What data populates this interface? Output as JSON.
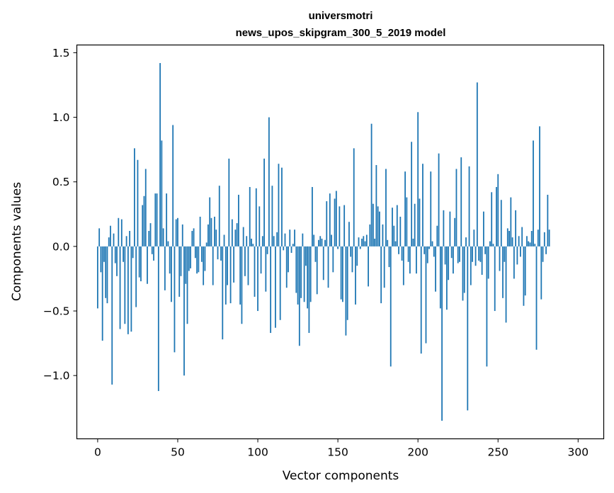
{
  "chart_data": {
    "type": "bar",
    "title_lines": [
      "universmotri",
      "news_upos_skipgram_300_5_2019 model"
    ],
    "xlabel": "Vector components",
    "ylabel": "Components values",
    "xlim": [
      -13,
      316
    ],
    "ylim": [
      -1.49,
      1.56
    ],
    "xticks": [
      0,
      50,
      100,
      150,
      200,
      250,
      300
    ],
    "xtick_labels": [
      "0",
      "50",
      "100",
      "150",
      "200",
      "250",
      "300"
    ],
    "yticks": [
      -1.0,
      -0.5,
      0.0,
      0.5,
      1.0,
      1.5
    ],
    "ytick_labels": [
      "−1.0",
      "−0.5",
      "0.0",
      "0.5",
      "1.0",
      "1.5"
    ],
    "color": "#1f77b4",
    "values": [
      -0.48,
      0.14,
      -0.2,
      -0.73,
      -0.12,
      -0.4,
      -0.44,
      0.07,
      0.16,
      -1.07,
      0.1,
      -0.13,
      -0.23,
      0.22,
      -0.64,
      0.21,
      -0.12,
      -0.6,
      0.08,
      -0.68,
      0.12,
      -0.66,
      -0.09,
      0.76,
      -0.47,
      0.67,
      -0.24,
      -0.27,
      0.32,
      0.39,
      0.6,
      -0.29,
      0.12,
      0.18,
      -0.06,
      -0.11,
      0.41,
      0.41,
      -1.12,
      1.42,
      0.82,
      0.14,
      -0.34,
      0.41,
      0.04,
      -0.21,
      -0.43,
      0.94,
      -0.82,
      0.21,
      0.22,
      -0.39,
      -0.23,
      0.17,
      -1.0,
      -0.29,
      -0.6,
      -0.19,
      -0.17,
      0.12,
      0.14,
      -0.09,
      -0.21,
      -0.2,
      0.23,
      -0.12,
      -0.3,
      -0.19,
      0.03,
      0.17,
      0.38,
      0.22,
      -0.3,
      0.23,
      0.13,
      -0.1,
      0.47,
      -0.11,
      -0.72,
      0.09,
      -0.45,
      -0.3,
      0.68,
      -0.44,
      0.21,
      -0.28,
      0.13,
      0.18,
      0.4,
      -0.45,
      -0.6,
      0.15,
      -0.23,
      0.08,
      -0.3,
      0.46,
      0.06,
      0.02,
      -0.39,
      0.45,
      -0.5,
      0.31,
      -0.21,
      0.08,
      0.68,
      -0.35,
      -0.06,
      1.0,
      -0.67,
      0.47,
      0.08,
      -0.63,
      0.11,
      0.64,
      -0.57,
      0.61,
      -0.03,
      0.1,
      -0.32,
      -0.2,
      0.13,
      -0.05,
      0.02,
      0.13,
      -0.36,
      -0.45,
      -0.77,
      -0.4,
      0.1,
      -0.43,
      -0.15,
      -0.48,
      -0.67,
      -0.43,
      0.46,
      0.09,
      -0.12,
      -0.37,
      0.05,
      0.08,
      0.06,
      -0.26,
      0.05,
      0.35,
      -0.32,
      0.41,
      0.09,
      -0.2,
      0.37,
      0.43,
      -0.02,
      0.31,
      -0.41,
      -0.43,
      0.32,
      -0.69,
      -0.57,
      0.19,
      -0.08,
      -0.2,
      0.76,
      -0.45,
      -0.15,
      0.07,
      -0.02,
      0.06,
      0.08,
      0.04,
      0.09,
      -0.31,
      0.17,
      0.95,
      0.33,
      0.06,
      0.63,
      0.31,
      0.27,
      -0.44,
      0.17,
      -0.32,
      0.6,
      0.05,
      -0.16,
      -0.93,
      0.3,
      0.16,
      0.04,
      0.32,
      -0.06,
      0.23,
      -0.11,
      -0.3,
      0.58,
      0.38,
      -0.12,
      -0.21,
      0.81,
      0.06,
      0.33,
      -0.21,
      1.04,
      0.37,
      -0.83,
      0.64,
      -0.06,
      -0.75,
      -0.13,
      -0.02,
      0.58,
      0.04,
      -0.08,
      -0.35,
      0.16,
      0.72,
      -0.48,
      -1.35,
      0.28,
      -0.14,
      -0.49,
      -0.26,
      0.27,
      -0.09,
      -0.21,
      0.22,
      0.6,
      -0.13,
      -0.12,
      0.69,
      -0.42,
      -0.36,
      0.07,
      -1.27,
      0.62,
      -0.3,
      -0.12,
      0.13,
      -0.15,
      1.27,
      -0.11,
      -0.12,
      -0.22,
      0.27,
      -0.06,
      -0.93,
      -0.25,
      0.04,
      0.42,
      0.02,
      -0.5,
      0.46,
      0.56,
      -0.19,
      0.36,
      -0.4,
      -0.12,
      -0.59,
      0.14,
      0.12,
      0.38,
      0.07,
      -0.25,
      0.28,
      -0.14,
      0.08,
      -0.08,
      0.15,
      -0.46,
      -0.38,
      0.08,
      0.04,
      0.03,
      0.12,
      0.82,
      0.02,
      -0.8,
      0.13,
      0.93,
      -0.41,
      -0.12,
      0.11,
      -0.06,
      0.4,
      0.13
    ]
  }
}
